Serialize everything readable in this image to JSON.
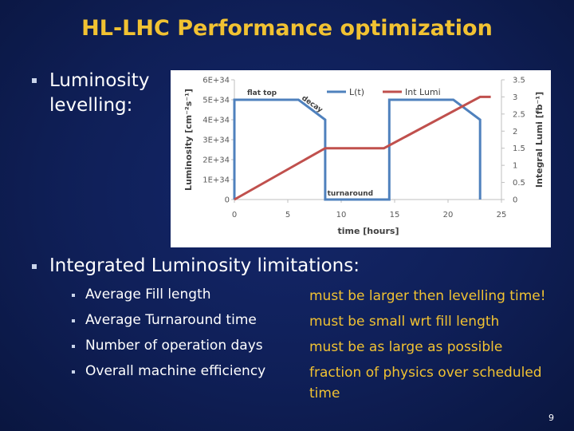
{
  "slide": {
    "title": "HL-LHC  Performance optimization",
    "bullet1": "Luminosity levelling:",
    "bullet2": "Integrated Luminosity limitations:",
    "items": [
      {
        "label": "Average Fill length",
        "note": "must be larger then levelling time!"
      },
      {
        "label": "Average Turnaround time",
        "note": "must be small wrt fill length"
      },
      {
        "label": "Number of operation days",
        "note": "must be as large as possible"
      },
      {
        "label": "Overall machine efficiency",
        "note": "fraction of physics over scheduled time"
      }
    ],
    "page_number": "9",
    "colors": {
      "title": "#f1c232",
      "note": "#f1c232",
      "background": "#0f1f57"
    }
  },
  "chart_data": {
    "type": "line",
    "xlabel": "time [hours]",
    "ylabel": "Luminosity  [cm⁻²s⁻¹]",
    "ylabel2": "Integral Lumi [fb⁻¹]",
    "xlim": [
      0,
      25
    ],
    "ylim": [
      0,
      6e+34
    ],
    "ylim2": [
      0,
      3.5
    ],
    "x_ticks": [
      "0",
      "5",
      "10",
      "15",
      "20",
      "25"
    ],
    "y_ticks": [
      "0",
      "1E+34",
      "2E+34",
      "3E+34",
      "4E+34",
      "5E+34",
      "6E+34"
    ],
    "y2_ticks": [
      "0",
      "0.5",
      "1",
      "1.5",
      "2",
      "2.5",
      "3",
      "3.5"
    ],
    "legend_position": "top",
    "grid": false,
    "annotations": [
      "flat top",
      "decay",
      "turnaround"
    ],
    "series": [
      {
        "name": "L(t)",
        "color": "#4f81bd",
        "axis": "left",
        "x": [
          0,
          0,
          6,
          8.5,
          8.5,
          14.5,
          14.5,
          20.5,
          23,
          23
        ],
        "y": [
          0,
          5e+34,
          5e+34,
          4e+34,
          0,
          0,
          5e+34,
          5e+34,
          4e+34,
          0
        ]
      },
      {
        "name": "Int Lumi",
        "color": "#c0504d",
        "axis": "right",
        "x": [
          0,
          8.5,
          14,
          23,
          24
        ],
        "y": [
          0,
          1.5,
          1.5,
          3,
          3
        ]
      }
    ]
  }
}
